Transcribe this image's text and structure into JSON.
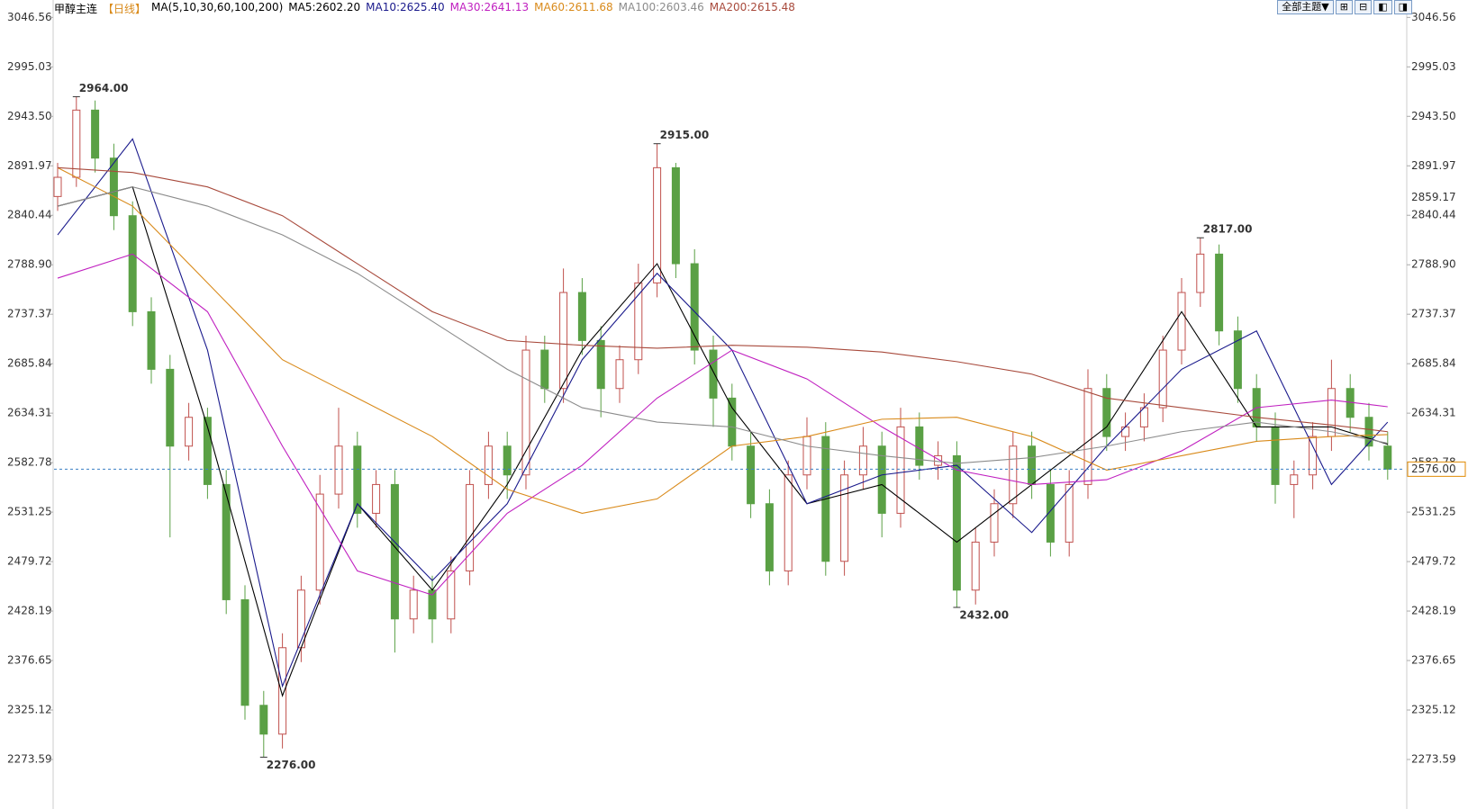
{
  "chart_data": {
    "type": "candlestick",
    "title": "甲醇主连",
    "period": "【日线】",
    "indicator": "MA(5,10,30,60,100,200)",
    "theme_button": "全部主题▼",
    "ylim": [
      2222,
      3060
    ],
    "yticks": [
      3046.56,
      2995.03,
      {
        "value": 2943.5,
        "label": "2943.50"
      },
      2891.97,
      2840.44,
      {
        "value": 2788.9,
        "label": "2788.90"
      },
      2737.37,
      2685.84,
      2634.31,
      2582.78,
      2531.25,
      2479.72,
      2428.19,
      2376.65,
      2325.12,
      2273.59
    ],
    "grid": false,
    "up_color": "#c0504d",
    "down_color": "#5aa045",
    "ohlc": [
      [
        2860,
        2895,
        2845,
        2880
      ],
      [
        2880,
        2964,
        2870,
        2950
      ],
      [
        2950,
        2960,
        2885,
        2900
      ],
      [
        2900,
        2915,
        2825,
        2840
      ],
      [
        2840,
        2855,
        2725,
        2740
      ],
      [
        2740,
        2755,
        2665,
        2680
      ],
      [
        2680,
        2695,
        2505,
        2600
      ],
      [
        2600,
        2645,
        2585,
        2630
      ],
      [
        2630,
        2640,
        2545,
        2560
      ],
      [
        2560,
        2575,
        2425,
        2440
      ],
      [
        2440,
        2455,
        2315,
        2330
      ],
      [
        2330,
        2345,
        2276,
        2300
      ],
      [
        2300,
        2405,
        2285,
        2390
      ],
      [
        2390,
        2465,
        2375,
        2450
      ],
      [
        2450,
        2570,
        2435,
        2550
      ],
      [
        2550,
        2640,
        2535,
        2600
      ],
      [
        2600,
        2615,
        2515,
        2530
      ],
      [
        2530,
        2575,
        2515,
        2560
      ],
      [
        2560,
        2575,
        2385,
        2420
      ],
      [
        2420,
        2465,
        2405,
        2450
      ],
      [
        2450,
        2465,
        2395,
        2420
      ],
      [
        2420,
        2485,
        2405,
        2470
      ],
      [
        2470,
        2575,
        2455,
        2560
      ],
      [
        2560,
        2615,
        2545,
        2600
      ],
      [
        2600,
        2615,
        2545,
        2570
      ],
      [
        2570,
        2715,
        2555,
        2700
      ],
      [
        2700,
        2715,
        2645,
        2660
      ],
      [
        2660,
        2785,
        2645,
        2760
      ],
      [
        2760,
        2775,
        2695,
        2710
      ],
      [
        2710,
        2725,
        2630,
        2660
      ],
      [
        2660,
        2705,
        2645,
        2690
      ],
      [
        2690,
        2790,
        2675,
        2770
      ],
      [
        2770,
        2915,
        2755,
        2890
      ],
      [
        2890,
        2895,
        2775,
        2790
      ],
      [
        2790,
        2805,
        2685,
        2700
      ],
      [
        2700,
        2715,
        2620,
        2650
      ],
      [
        2650,
        2665,
        2585,
        2600
      ],
      [
        2600,
        2615,
        2525,
        2540
      ],
      [
        2540,
        2555,
        2455,
        2470
      ],
      [
        2470,
        2585,
        2455,
        2570
      ],
      [
        2570,
        2630,
        2555,
        2610
      ],
      [
        2610,
        2625,
        2465,
        2480
      ],
      [
        2480,
        2585,
        2465,
        2570
      ],
      [
        2570,
        2620,
        2555,
        2600
      ],
      [
        2600,
        2615,
        2505,
        2530
      ],
      [
        2530,
        2640,
        2515,
        2620
      ],
      [
        2620,
        2635,
        2565,
        2580
      ],
      [
        2580,
        2605,
        2565,
        2590
      ],
      [
        2590,
        2605,
        2432,
        2450
      ],
      [
        2450,
        2515,
        2435,
        2500
      ],
      [
        2500,
        2555,
        2485,
        2540
      ],
      [
        2540,
        2615,
        2525,
        2600
      ],
      [
        2600,
        2615,
        2545,
        2560
      ],
      [
        2560,
        2575,
        2485,
        2500
      ],
      [
        2500,
        2575,
        2485,
        2560
      ],
      [
        2560,
        2680,
        2545,
        2660
      ],
      [
        2660,
        2675,
        2595,
        2610
      ],
      [
        2610,
        2635,
        2595,
        2620
      ],
      [
        2620,
        2655,
        2605,
        2640
      ],
      [
        2640,
        2715,
        2625,
        2700
      ],
      [
        2700,
        2775,
        2685,
        2760
      ],
      [
        2760,
        2817,
        2745,
        2800
      ],
      [
        2800,
        2810,
        2705,
        2720
      ],
      [
        2720,
        2735,
        2645,
        2660
      ],
      [
        2660,
        2675,
        2605,
        2620
      ],
      [
        2620,
        2635,
        2540,
        2560
      ],
      [
        2560,
        2585,
        2525,
        2570
      ],
      [
        2570,
        2625,
        2555,
        2610
      ],
      [
        2610,
        2690,
        2595,
        2660
      ],
      [
        2660,
        2675,
        2615,
        2630
      ],
      [
        2630,
        2645,
        2585,
        2600
      ],
      [
        2600,
        2615,
        2565,
        2576
      ]
    ],
    "x": [
      0,
      4,
      8,
      12,
      16,
      20,
      24,
      28,
      32,
      36,
      40,
      44,
      48,
      52,
      56,
      60,
      64,
      68,
      71
    ],
    "series": [
      {
        "name": "MA5:2602.20",
        "color": "#000000",
        "values": [
          2850,
          2870,
          2620,
          2340,
          2540,
          2450,
          2560,
          2700,
          2790,
          2640,
          2540,
          2560,
          2500,
          2560,
          2620,
          2740,
          2620,
          2620,
          2602
        ]
      },
      {
        "name": "MA10:2625.40",
        "color": "#1a1a8c",
        "values": [
          2820,
          2920,
          2700,
          2350,
          2540,
          2460,
          2540,
          2690,
          2780,
          2700,
          2540,
          2570,
          2580,
          2510,
          2600,
          2680,
          2720,
          2560,
          2625
        ]
      },
      {
        "name": "MA30:2641.13",
        "color": "#c020c0",
        "values": [
          2775,
          2800,
          2740,
          2600,
          2470,
          2445,
          2530,
          2580,
          2650,
          2700,
          2670,
          2620,
          2575,
          2560,
          2565,
          2595,
          2640,
          2648,
          2641
        ]
      },
      {
        "name": "MA60:2611.68",
        "color": "#d98a1a",
        "values": [
          2890,
          2850,
          2770,
          2690,
          2650,
          2610,
          2555,
          2530,
          2545,
          2600,
          2610,
          2628,
          2630,
          2610,
          2575,
          2590,
          2605,
          2610,
          2612
        ]
      },
      {
        "name": "MA100:2603.46",
        "color": "#8c8c8c",
        "values": [
          2850,
          2870,
          2850,
          2820,
          2780,
          2730,
          2680,
          2640,
          2625,
          2620,
          2600,
          2590,
          2582,
          2588,
          2600,
          2615,
          2625,
          2615,
          2603
        ]
      },
      {
        "name": "MA200:2615.48",
        "color": "#a84a3c",
        "values": [
          2890,
          2885,
          2870,
          2840,
          2790,
          2740,
          2710,
          2705,
          2702,
          2705,
          2703,
          2698,
          2688,
          2675,
          2650,
          2640,
          2630,
          2622,
          2615
        ]
      }
    ],
    "annotations": [
      {
        "x": 1,
        "value": 2964,
        "label": "2964.00",
        "color": "#c0392b"
      },
      {
        "x": 32,
        "value": 2915,
        "label": "2915.00",
        "color": "#c0392b"
      },
      {
        "x": 61,
        "value": 2817,
        "label": "2817.00",
        "color": "#c0392b"
      },
      {
        "x": 11,
        "value": 2276,
        "label": "2276.00",
        "color": "#4f9a3c"
      },
      {
        "x": 48,
        "value": 2432,
        "label": "2432.00",
        "color": "#4f9a3c"
      }
    ],
    "price_lines": [
      {
        "value": 2576,
        "label": "2576.00",
        "color": "#e08a00",
        "line_color": "#3a7fc4"
      },
      {
        "value": 2859.17,
        "label": "2859.17",
        "color": "#e08a00"
      }
    ]
  }
}
